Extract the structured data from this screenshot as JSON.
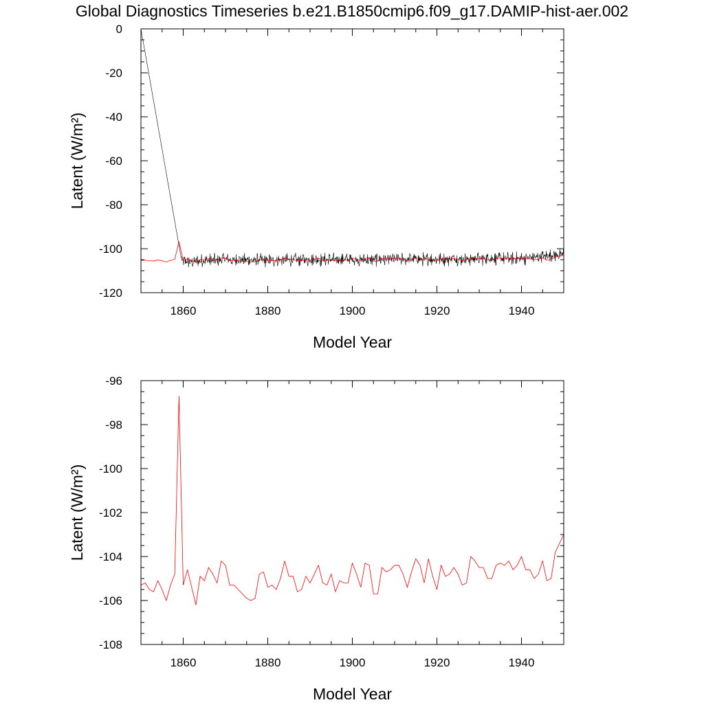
{
  "title": "Global Diagnostics Timeseries b.e21.B1850cmip6.f09_g17.DAMIP-hist-aer.002",
  "colors": {
    "monthly_line": "#000000",
    "annual_line": "#ff0000",
    "axis": "#000000"
  },
  "chart_data": [
    {
      "type": "line",
      "xlabel": "Model Year",
      "ylabel": "Latent (W/m²)",
      "xlim": [
        1850,
        1950
      ],
      "ylim": [
        -120,
        0
      ],
      "xticks": [
        1860,
        1880,
        1900,
        1920,
        1940
      ],
      "yticks": [
        0,
        -20,
        -40,
        -60,
        -80,
        -100,
        -120
      ],
      "grid": false,
      "series": [
        {
          "color": "#000000",
          "kind": "monthly",
          "x": [
            1850,
            1859.5,
            1860,
            1870,
            1880,
            1890,
            1900,
            1910,
            1920,
            1930,
            1940,
            1950
          ],
          "values": [
            0,
            -104,
            -106,
            -105,
            -105.2,
            -105,
            -105,
            -104.8,
            -104.8,
            -104.5,
            -104.5,
            -102.5
          ],
          "noise_amplitude": 3.5
        },
        {
          "color": "#ff0000",
          "kind": "annual",
          "ref": "annual_mean"
        }
      ]
    },
    {
      "type": "line",
      "xlabel": "Model Year",
      "ylabel": "Latent (W/m²)",
      "xlim": [
        1850,
        1950
      ],
      "ylim": [
        -108,
        -96
      ],
      "xticks": [
        1860,
        1880,
        1900,
        1920,
        1940
      ],
      "yticks": [
        -96,
        -98,
        -100,
        -102,
        -104,
        -106,
        -108
      ],
      "grid": false,
      "series": [
        {
          "color": "#ff0000",
          "kind": "annual",
          "ref": "annual_mean"
        }
      ]
    }
  ],
  "annual_mean": {
    "x": [
      1850,
      1851,
      1852,
      1853,
      1854,
      1855,
      1856,
      1857,
      1858,
      1859,
      1860,
      1861,
      1862,
      1863,
      1864,
      1865,
      1866,
      1867,
      1868,
      1869,
      1870,
      1871,
      1872,
      1873,
      1874,
      1875,
      1876,
      1877,
      1878,
      1879,
      1880,
      1881,
      1882,
      1883,
      1884,
      1885,
      1886,
      1887,
      1888,
      1889,
      1890,
      1891,
      1892,
      1893,
      1894,
      1895,
      1896,
      1897,
      1898,
      1899,
      1900,
      1901,
      1902,
      1903,
      1904,
      1905,
      1906,
      1907,
      1908,
      1909,
      1910,
      1911,
      1912,
      1913,
      1914,
      1915,
      1916,
      1917,
      1918,
      1919,
      1920,
      1921,
      1922,
      1923,
      1924,
      1925,
      1926,
      1927,
      1928,
      1929,
      1930,
      1931,
      1932,
      1933,
      1934,
      1935,
      1936,
      1937,
      1938,
      1939,
      1940,
      1941,
      1942,
      1943,
      1944,
      1945,
      1946,
      1947,
      1948,
      1949,
      1950
    ],
    "values": [
      -105.3,
      -105.2,
      -105.5,
      -105.6,
      -105.1,
      -105.5,
      -106.0,
      -105.3,
      -104.8,
      -96.7,
      -105.3,
      -104.6,
      -105.4,
      -106.2,
      -104.9,
      -105.1,
      -104.5,
      -104.8,
      -105.2,
      -104.2,
      -104.4,
      -105.3,
      -105.3,
      -105.5,
      -105.7,
      -105.9,
      -106.0,
      -105.9,
      -104.8,
      -104.7,
      -105.4,
      -105.3,
      -105.5,
      -105.0,
      -104.2,
      -104.9,
      -104.9,
      -105.6,
      -105.5,
      -104.9,
      -105.2,
      -104.8,
      -104.4,
      -105.2,
      -105.3,
      -104.8,
      -105.6,
      -105.1,
      -105.2,
      -105.2,
      -104.3,
      -104.8,
      -105.4,
      -104.3,
      -104.4,
      -105.7,
      -105.7,
      -104.5,
      -104.7,
      -104.6,
      -104.4,
      -104.4,
      -104.8,
      -105.4,
      -104.7,
      -104.1,
      -104.4,
      -105.2,
      -104.1,
      -104.9,
      -105.5,
      -104.4,
      -104.9,
      -104.8,
      -104.5,
      -104.8,
      -105.3,
      -105.2,
      -104.0,
      -104.2,
      -104.5,
      -104.5,
      -105.0,
      -105.0,
      -104.4,
      -104.3,
      -104.4,
      -104.2,
      -104.6,
      -104.4,
      -104.0,
      -104.6,
      -104.6,
      -105.0,
      -104.8,
      -104.2,
      -105.1,
      -105.0,
      -103.8,
      -103.4,
      -103.0
    ]
  }
}
